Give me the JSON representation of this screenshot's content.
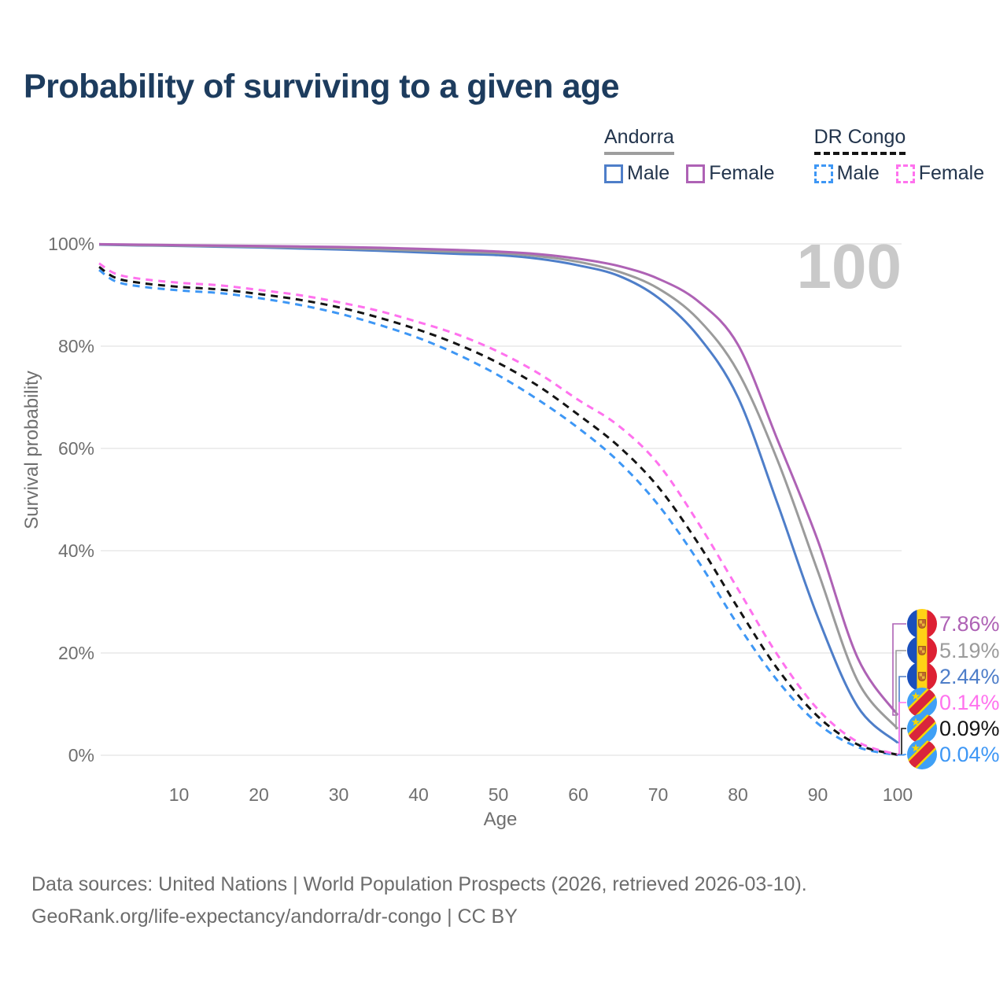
{
  "title": "Probability of surviving to a given age",
  "watermark": "100",
  "legend": {
    "groups": [
      {
        "label": "Andorra",
        "underline": "solid",
        "underline_color": "#9e9e9e",
        "items": [
          {
            "label": "Male",
            "color": "#4e7ec9",
            "dashed": false
          },
          {
            "label": "Female",
            "color": "#ae62b5",
            "dashed": false
          }
        ]
      },
      {
        "label": "DR Congo",
        "underline": "dashed",
        "underline_color": "#141414",
        "items": [
          {
            "label": "Male",
            "color": "#3e97f5",
            "dashed": true
          },
          {
            "label": "Female",
            "color": "#ff72ee",
            "dashed": true
          }
        ]
      }
    ]
  },
  "chart_data": {
    "type": "line",
    "xlabel": "Age",
    "ylabel": "Survival probability",
    "xlim": [
      0,
      100
    ],
    "ylim": [
      0,
      100
    ],
    "x_ticks": [
      10,
      20,
      30,
      40,
      50,
      60,
      70,
      80,
      90,
      100
    ],
    "y_ticks": [
      0,
      20,
      40,
      60,
      80,
      100
    ],
    "y_tick_suffix": "%",
    "grid": "horizontal",
    "legend_position": "top-right",
    "watermark": "100",
    "series": [
      {
        "id": "andorra-female",
        "name": "Andorra Female",
        "color": "#ae62b5",
        "dashed": false,
        "flag": "ad",
        "end_label": "7.86%",
        "points": [
          [
            0,
            99.95
          ],
          [
            5,
            99.85
          ],
          [
            10,
            99.75
          ],
          [
            15,
            99.68
          ],
          [
            20,
            99.6
          ],
          [
            25,
            99.5
          ],
          [
            30,
            99.4
          ],
          [
            35,
            99.25
          ],
          [
            40,
            99.05
          ],
          [
            45,
            98.8
          ],
          [
            50,
            98.5
          ],
          [
            55,
            98.0
          ],
          [
            60,
            97.1
          ],
          [
            65,
            95.7
          ],
          [
            70,
            93.2
          ],
          [
            75,
            88.8
          ],
          [
            80,
            80.3
          ],
          [
            85,
            61.5
          ],
          [
            90,
            42.0
          ],
          [
            95,
            19.0
          ],
          [
            100,
            7.86
          ]
        ]
      },
      {
        "id": "andorra-combined",
        "name": "Andorra",
        "color": "#9b9b9b",
        "dashed": false,
        "flag": "ad",
        "end_label": "5.19%",
        "points": [
          [
            0,
            99.9
          ],
          [
            5,
            99.75
          ],
          [
            10,
            99.65
          ],
          [
            15,
            99.55
          ],
          [
            20,
            99.45
          ],
          [
            25,
            99.3
          ],
          [
            30,
            99.15
          ],
          [
            35,
            98.95
          ],
          [
            40,
            98.7
          ],
          [
            45,
            98.45
          ],
          [
            50,
            98.2
          ],
          [
            55,
            97.6
          ],
          [
            60,
            96.5
          ],
          [
            65,
            94.6
          ],
          [
            70,
            91.3
          ],
          [
            75,
            85.3
          ],
          [
            80,
            75.0
          ],
          [
            85,
            57.5
          ],
          [
            90,
            36.0
          ],
          [
            95,
            14.5
          ],
          [
            100,
            5.19
          ]
        ]
      },
      {
        "id": "andorra-male",
        "name": "Andorra Male",
        "color": "#4e7ec9",
        "dashed": false,
        "flag": "ad",
        "end_label": "2.44%",
        "points": [
          [
            0,
            99.85
          ],
          [
            5,
            99.7
          ],
          [
            10,
            99.6
          ],
          [
            15,
            99.45
          ],
          [
            20,
            99.3
          ],
          [
            25,
            99.1
          ],
          [
            30,
            98.9
          ],
          [
            35,
            98.65
          ],
          [
            40,
            98.35
          ],
          [
            45,
            98.05
          ],
          [
            50,
            97.8
          ],
          [
            55,
            97.1
          ],
          [
            60,
            95.8
          ],
          [
            65,
            93.8
          ],
          [
            70,
            89.5
          ],
          [
            75,
            82.0
          ],
          [
            80,
            70.0
          ],
          [
            85,
            49.0
          ],
          [
            90,
            27.0
          ],
          [
            95,
            9.5
          ],
          [
            100,
            2.44
          ]
        ]
      },
      {
        "id": "dr-congo-female",
        "name": "DR Congo Female",
        "color": "#ff72ee",
        "dashed": true,
        "flag": "cd",
        "end_label": "0.14%",
        "points": [
          [
            0,
            96.2
          ],
          [
            2,
            94.2
          ],
          [
            5,
            93.2
          ],
          [
            10,
            92.4
          ],
          [
            15,
            91.9
          ],
          [
            20,
            91.0
          ],
          [
            25,
            90.0
          ],
          [
            30,
            88.6
          ],
          [
            35,
            86.9
          ],
          [
            40,
            84.7
          ],
          [
            45,
            82.2
          ],
          [
            50,
            78.9
          ],
          [
            55,
            74.7
          ],
          [
            60,
            69.5
          ],
          [
            65,
            64.5
          ],
          [
            70,
            57.0
          ],
          [
            75,
            45.5
          ],
          [
            80,
            32.5
          ],
          [
            85,
            19.5
          ],
          [
            90,
            9.0
          ],
          [
            95,
            2.6
          ],
          [
            100,
            0.14
          ]
        ]
      },
      {
        "id": "dr-congo-combined",
        "name": "DR Congo",
        "color": "#141414",
        "dashed": true,
        "flag": "cd",
        "end_label": "0.09%",
        "points": [
          [
            0,
            95.5
          ],
          [
            2,
            93.4
          ],
          [
            5,
            92.4
          ],
          [
            10,
            91.6
          ],
          [
            15,
            91.1
          ],
          [
            20,
            90.2
          ],
          [
            25,
            89.1
          ],
          [
            30,
            87.6
          ],
          [
            35,
            85.6
          ],
          [
            40,
            83.2
          ],
          [
            45,
            80.3
          ],
          [
            50,
            76.7
          ],
          [
            55,
            72.2
          ],
          [
            60,
            66.6
          ],
          [
            65,
            60.5
          ],
          [
            70,
            52.5
          ],
          [
            75,
            41.5
          ],
          [
            80,
            28.8
          ],
          [
            85,
            16.8
          ],
          [
            90,
            7.6
          ],
          [
            95,
            2.1
          ],
          [
            100,
            0.09
          ]
        ]
      },
      {
        "id": "dr-congo-male",
        "name": "DR Congo Male",
        "color": "#3e97f5",
        "dashed": true,
        "flag": "cd",
        "end_label": "0.04%",
        "points": [
          [
            0,
            94.9
          ],
          [
            2,
            92.7
          ],
          [
            5,
            91.7
          ],
          [
            10,
            90.9
          ],
          [
            15,
            90.4
          ],
          [
            20,
            89.4
          ],
          [
            25,
            88.1
          ],
          [
            30,
            86.4
          ],
          [
            35,
            84.2
          ],
          [
            40,
            81.6
          ],
          [
            45,
            78.3
          ],
          [
            50,
            74.3
          ],
          [
            55,
            69.5
          ],
          [
            60,
            64.0
          ],
          [
            65,
            57.5
          ],
          [
            70,
            49.0
          ],
          [
            75,
            38.0
          ],
          [
            80,
            25.5
          ],
          [
            85,
            14.5
          ],
          [
            90,
            6.2
          ],
          [
            95,
            1.6
          ],
          [
            100,
            0.04
          ]
        ]
      }
    ]
  },
  "footer": {
    "line1": "Data sources: United Nations | World Population Prospects (2026, retrieved 2026-03-10).",
    "line2": "GeoRank.org/life-expectancy/andorra/dr-congo | CC BY"
  }
}
